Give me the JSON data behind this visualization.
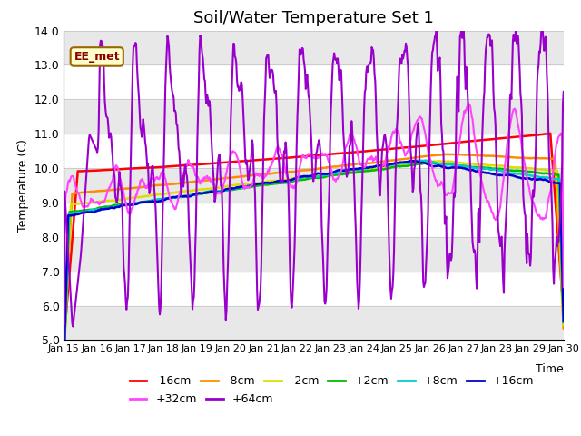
{
  "title": "Soil/Water Temperature Set 1",
  "xlabel": "Time",
  "ylabel": "Temperature (C)",
  "ylim": [
    5.0,
    14.0
  ],
  "yticks": [
    5.0,
    6.0,
    7.0,
    8.0,
    9.0,
    10.0,
    11.0,
    12.0,
    13.0,
    14.0
  ],
  "xtick_labels": [
    "Jan 15",
    "Jan 16",
    "Jan 17",
    "Jan 18",
    "Jan 19",
    "Jan 20",
    "Jan 21",
    "Jan 22",
    "Jan 23",
    "Jan 24",
    "Jan 25",
    "Jan 26",
    "Jan 27",
    "Jan 28",
    "Jan 29",
    "Jan 30"
  ],
  "n_days": 15,
  "pts_per_day": 48,
  "series_names": [
    "-16cm",
    "-8cm",
    "-2cm",
    "+2cm",
    "+8cm",
    "+16cm",
    "+32cm",
    "+64cm"
  ],
  "series_colors": [
    "#ff0000",
    "#ff8c00",
    "#dddd00",
    "#00bb00",
    "#00cccc",
    "#0000cc",
    "#ff44ff",
    "#9900cc"
  ],
  "series_lw": [
    1.8,
    1.8,
    1.8,
    1.8,
    1.8,
    1.8,
    1.5,
    1.5
  ],
  "annotation_text": "EE_met",
  "bg_color": "#ffffff",
  "alt_band_color": "#e8e8e8",
  "grid_color": "#cccccc"
}
